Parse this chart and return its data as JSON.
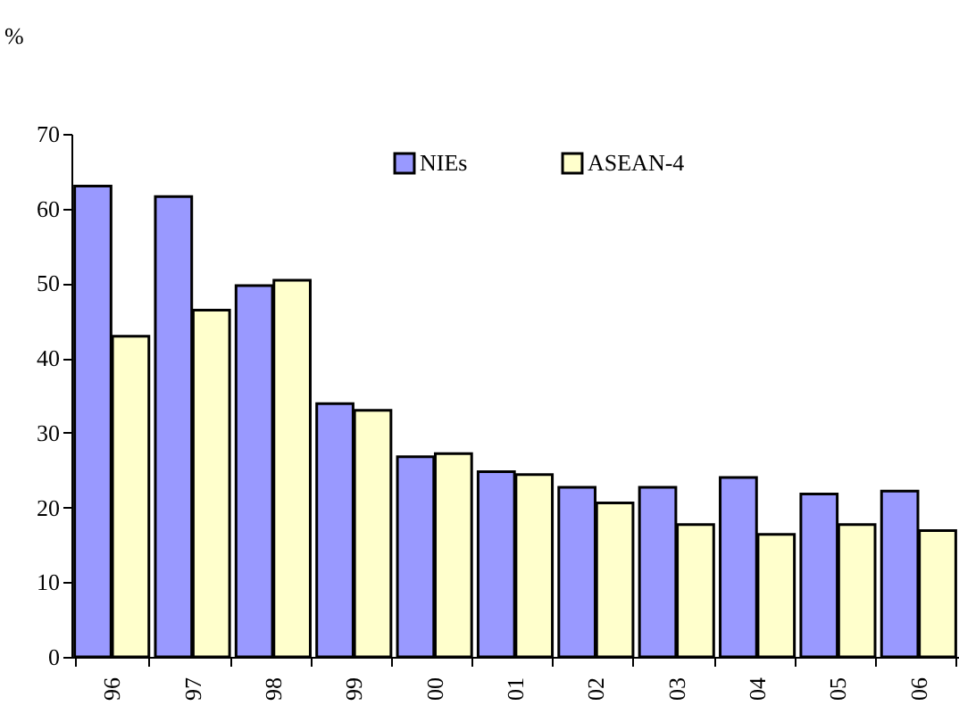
{
  "chart_data": {
    "type": "bar",
    "ylabel": "%",
    "categories": [
      "96",
      "97",
      "98",
      "99",
      "00",
      "01",
      "02",
      "03",
      "04",
      "05",
      "06"
    ],
    "series": [
      {
        "name": "NIEs",
        "color": "#9999ff",
        "values": [
          63,
          61.6,
          49.7,
          33.9,
          26.8,
          24.8,
          22.7,
          22.7,
          24.0,
          21.8,
          22.2
        ]
      },
      {
        "name": "ASEAN-4",
        "color": "#ffffcc",
        "values": [
          42.9,
          46.4,
          50.4,
          33.0,
          27.2,
          24.4,
          20.6,
          17.7,
          16.4,
          17.7,
          16.9
        ]
      }
    ],
    "ylim": [
      0,
      70
    ],
    "yticks": [
      0,
      10,
      20,
      30,
      40,
      50,
      60,
      70
    ],
    "legend": "top"
  }
}
